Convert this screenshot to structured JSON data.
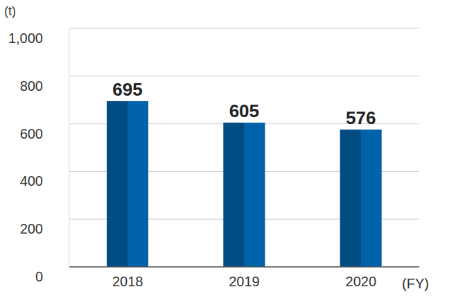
{
  "chart_data": {
    "type": "bar",
    "y_label": "(t)",
    "x_label": "(FY)",
    "categories": [
      "2018",
      "2019",
      "2020"
    ],
    "values": [
      695,
      605,
      576
    ],
    "color": "#0062a8",
    "ylim": [
      0,
      1000
    ],
    "yticks": [
      0,
      200,
      400,
      600,
      800,
      {
        "value": 1000,
        "label": "1,000"
      }
    ],
    "grid": true,
    "data_labels": true
  }
}
